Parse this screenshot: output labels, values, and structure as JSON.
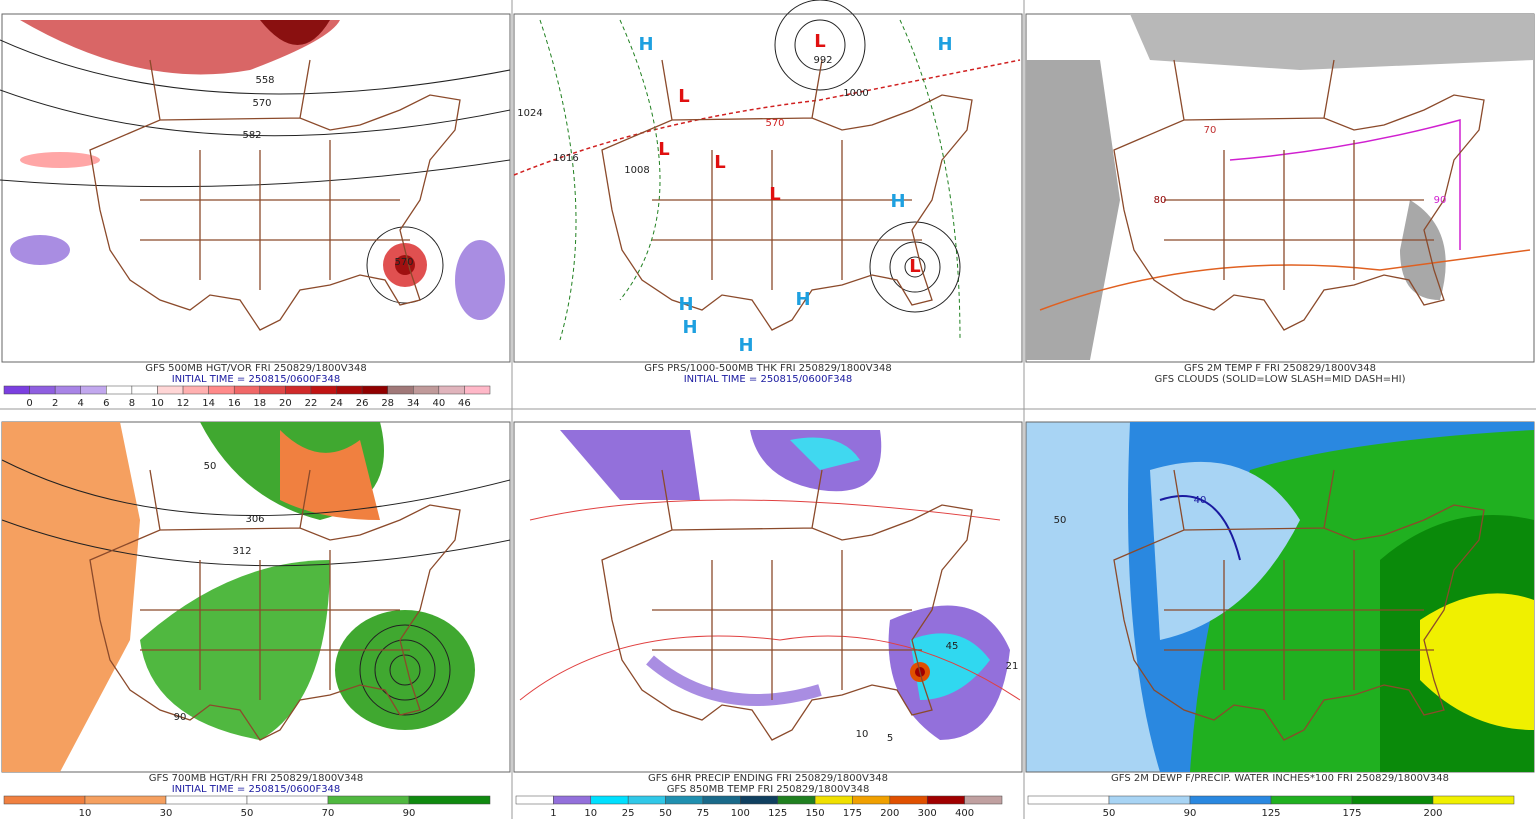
{
  "panels": [
    {
      "captions": [
        {
          "text": "GFS 500MB HGT/VOR FRI 250829/1800V348",
          "color": "#333333"
        },
        {
          "text": "INITIAL TIME = 250815/0600F348",
          "color": "#1a1aa0"
        }
      ],
      "colorbar": {
        "labels": [
          0,
          2,
          4,
          6,
          8,
          10,
          12,
          14,
          16,
          18,
          20,
          22,
          24,
          26,
          28,
          34,
          40,
          46
        ],
        "colors": [
          "#7b3fe0",
          "#8f5fe0",
          "#a884e6",
          "#c2a8ee",
          "#ffffff",
          "#ffffff",
          "#ffd6d6",
          "#ffb0b0",
          "#ff8a8a",
          "#f06868",
          "#e04848",
          "#d02a2a",
          "#c01414",
          "#a80808",
          "#900000",
          "#a07878",
          "#c09a9a",
          "#e0b4bc",
          "#ffb8c8"
        ]
      },
      "labels": [
        {
          "text": "558",
          "color": "#222222"
        },
        {
          "text": "570",
          "color": "#222222"
        },
        {
          "text": "582",
          "color": "#222222"
        },
        {
          "text": "570",
          "color": "#222222"
        }
      ]
    },
    {
      "captions": [
        {
          "text": "GFS PRS/1000-500MB THK FRI 250829/1800V348",
          "color": "#333333"
        },
        {
          "text": "INITIAL TIME = 250815/0600F348",
          "color": "#1a1aa0"
        }
      ],
      "labels": [
        {
          "text": "H",
          "color": "#1ea0e0"
        },
        {
          "text": "H",
          "color": "#1ea0e0"
        },
        {
          "text": "H",
          "color": "#1ea0e0"
        },
        {
          "text": "H",
          "color": "#1ea0e0"
        },
        {
          "text": "H",
          "color": "#1ea0e0"
        },
        {
          "text": "H",
          "color": "#1ea0e0"
        },
        {
          "text": "H",
          "color": "#1ea0e0"
        },
        {
          "text": "L",
          "color": "#e01010"
        },
        {
          "text": "L",
          "color": "#e01010"
        },
        {
          "text": "L",
          "color": "#e01010"
        },
        {
          "text": "L",
          "color": "#e01010"
        },
        {
          "text": "L",
          "color": "#e01010"
        },
        {
          "text": "L",
          "color": "#e01010"
        },
        {
          "text": "1024",
          "color": "#222222"
        },
        {
          "text": "1016",
          "color": "#222222"
        },
        {
          "text": "992",
          "color": "#222222"
        },
        {
          "text": "1000",
          "color": "#222222"
        },
        {
          "text": "1008",
          "color": "#222222"
        },
        {
          "text": "570",
          "color": "#d02020"
        }
      ]
    },
    {
      "captions": [
        {
          "text": "GFS 2M TEMP F FRI 250829/1800V348",
          "color": "#333333"
        },
        {
          "text": "GFS CLOUDS (SOLID=LOW SLASH=MID DASH=HI)",
          "color": "#333333"
        }
      ],
      "labels": [
        {
          "text": "80",
          "color": "#900000"
        },
        {
          "text": "70",
          "color": "#c03030"
        },
        {
          "text": "90",
          "color": "#d020d0"
        }
      ]
    },
    {
      "captions": [
        {
          "text": "GFS 700MB HGT/RH FRI 250829/1800V348",
          "color": "#333333"
        },
        {
          "text": "INITIAL TIME = 250815/0600F348",
          "color": "#1a1aa0"
        }
      ],
      "colorbar": {
        "labels": [
          10,
          30,
          50,
          70,
          90
        ],
        "colors": [
          "#f08040",
          "#f5a060",
          "#ffffff",
          "#ffffff",
          "#50b840",
          "#108a10"
        ]
      },
      "labels": [
        {
          "text": "50",
          "color": "#222222"
        },
        {
          "text": "306",
          "color": "#222222"
        },
        {
          "text": "312",
          "color": "#222222"
        },
        {
          "text": "90",
          "color": "#222222"
        }
      ]
    },
    {
      "captions": [
        {
          "text": "GFS 6HR PRECIP ENDING FRI 250829/1800V348",
          "color": "#333333"
        },
        {
          "text": "GFS 850MB TEMP FRI 250829/1800V348",
          "color": "#333333"
        }
      ],
      "colorbar": {
        "labels": [
          1,
          10,
          25,
          50,
          75,
          100,
          125,
          150,
          175,
          200,
          300,
          400
        ],
        "colors": [
          "#ffffff",
          "#9370db",
          "#00e0ff",
          "#30c8e8",
          "#2090b0",
          "#1a6a8a",
          "#104060",
          "#208020",
          "#f0e000",
          "#f0a000",
          "#e05000",
          "#a00000",
          "#c0a0a0"
        ]
      },
      "labels": [
        {
          "text": "45",
          "color": "#222222"
        },
        {
          "text": "21",
          "color": "#222222"
        },
        {
          "text": "10",
          "color": "#222222"
        },
        {
          "text": "5",
          "color": "#222222"
        }
      ]
    },
    {
      "captions": [
        {
          "text": "GFS 2M DEWP F/PRECIP. WATER INCHES*100 FRI 250829/1800V348",
          "color": "#333333"
        }
      ],
      "colorbar": {
        "labels": [
          50,
          90,
          125,
          175,
          200
        ],
        "colors": [
          "#ffffff",
          "#a8d4f4",
          "#2a88e0",
          "#20b020",
          "#0a8a0a",
          "#f0f000"
        ]
      },
      "labels": [
        {
          "text": "50",
          "color": "#222222"
        },
        {
          "text": "40",
          "color": "#1a1aa0"
        }
      ]
    }
  ]
}
